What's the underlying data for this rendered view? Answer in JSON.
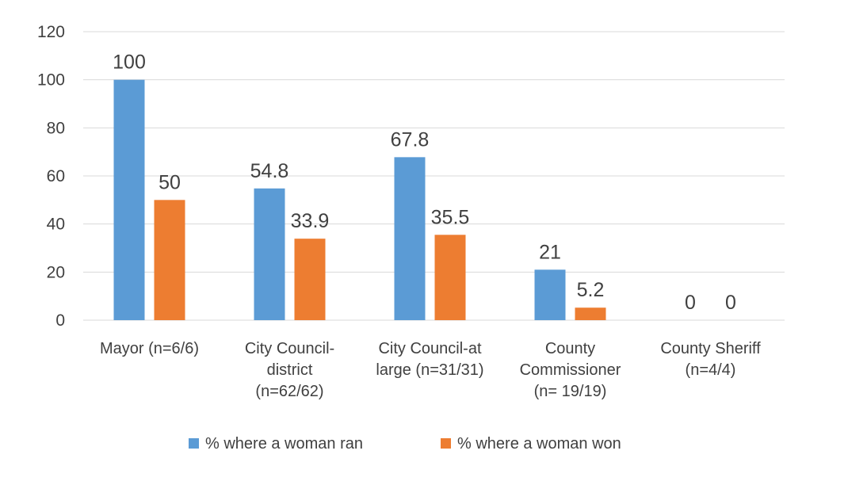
{
  "chart_data": {
    "type": "bar",
    "categories": [
      [
        "Mayor (n=6/6)"
      ],
      [
        "City Council-",
        "district",
        "(n=62/62)"
      ],
      [
        "City Council-at",
        "large (n=31/31)"
      ],
      [
        "County",
        "Commissioner",
        "(n= 19/19)"
      ],
      [
        "County Sheriff",
        "(n=4/4)"
      ]
    ],
    "series": [
      {
        "name": "% where a woman ran",
        "color": "#5b9bd5",
        "values": [
          100,
          54.8,
          67.8,
          21,
          0
        ]
      },
      {
        "name": "% where a woman won",
        "color": "#ed7d31",
        "values": [
          50,
          33.9,
          35.5,
          5.2,
          0
        ]
      }
    ],
    "ylim": [
      0,
      120
    ],
    "yticks": [
      0,
      20,
      40,
      60,
      80,
      100,
      120
    ],
    "grid": true,
    "legend": "bottom",
    "title": "",
    "xlabel": "",
    "ylabel": ""
  }
}
